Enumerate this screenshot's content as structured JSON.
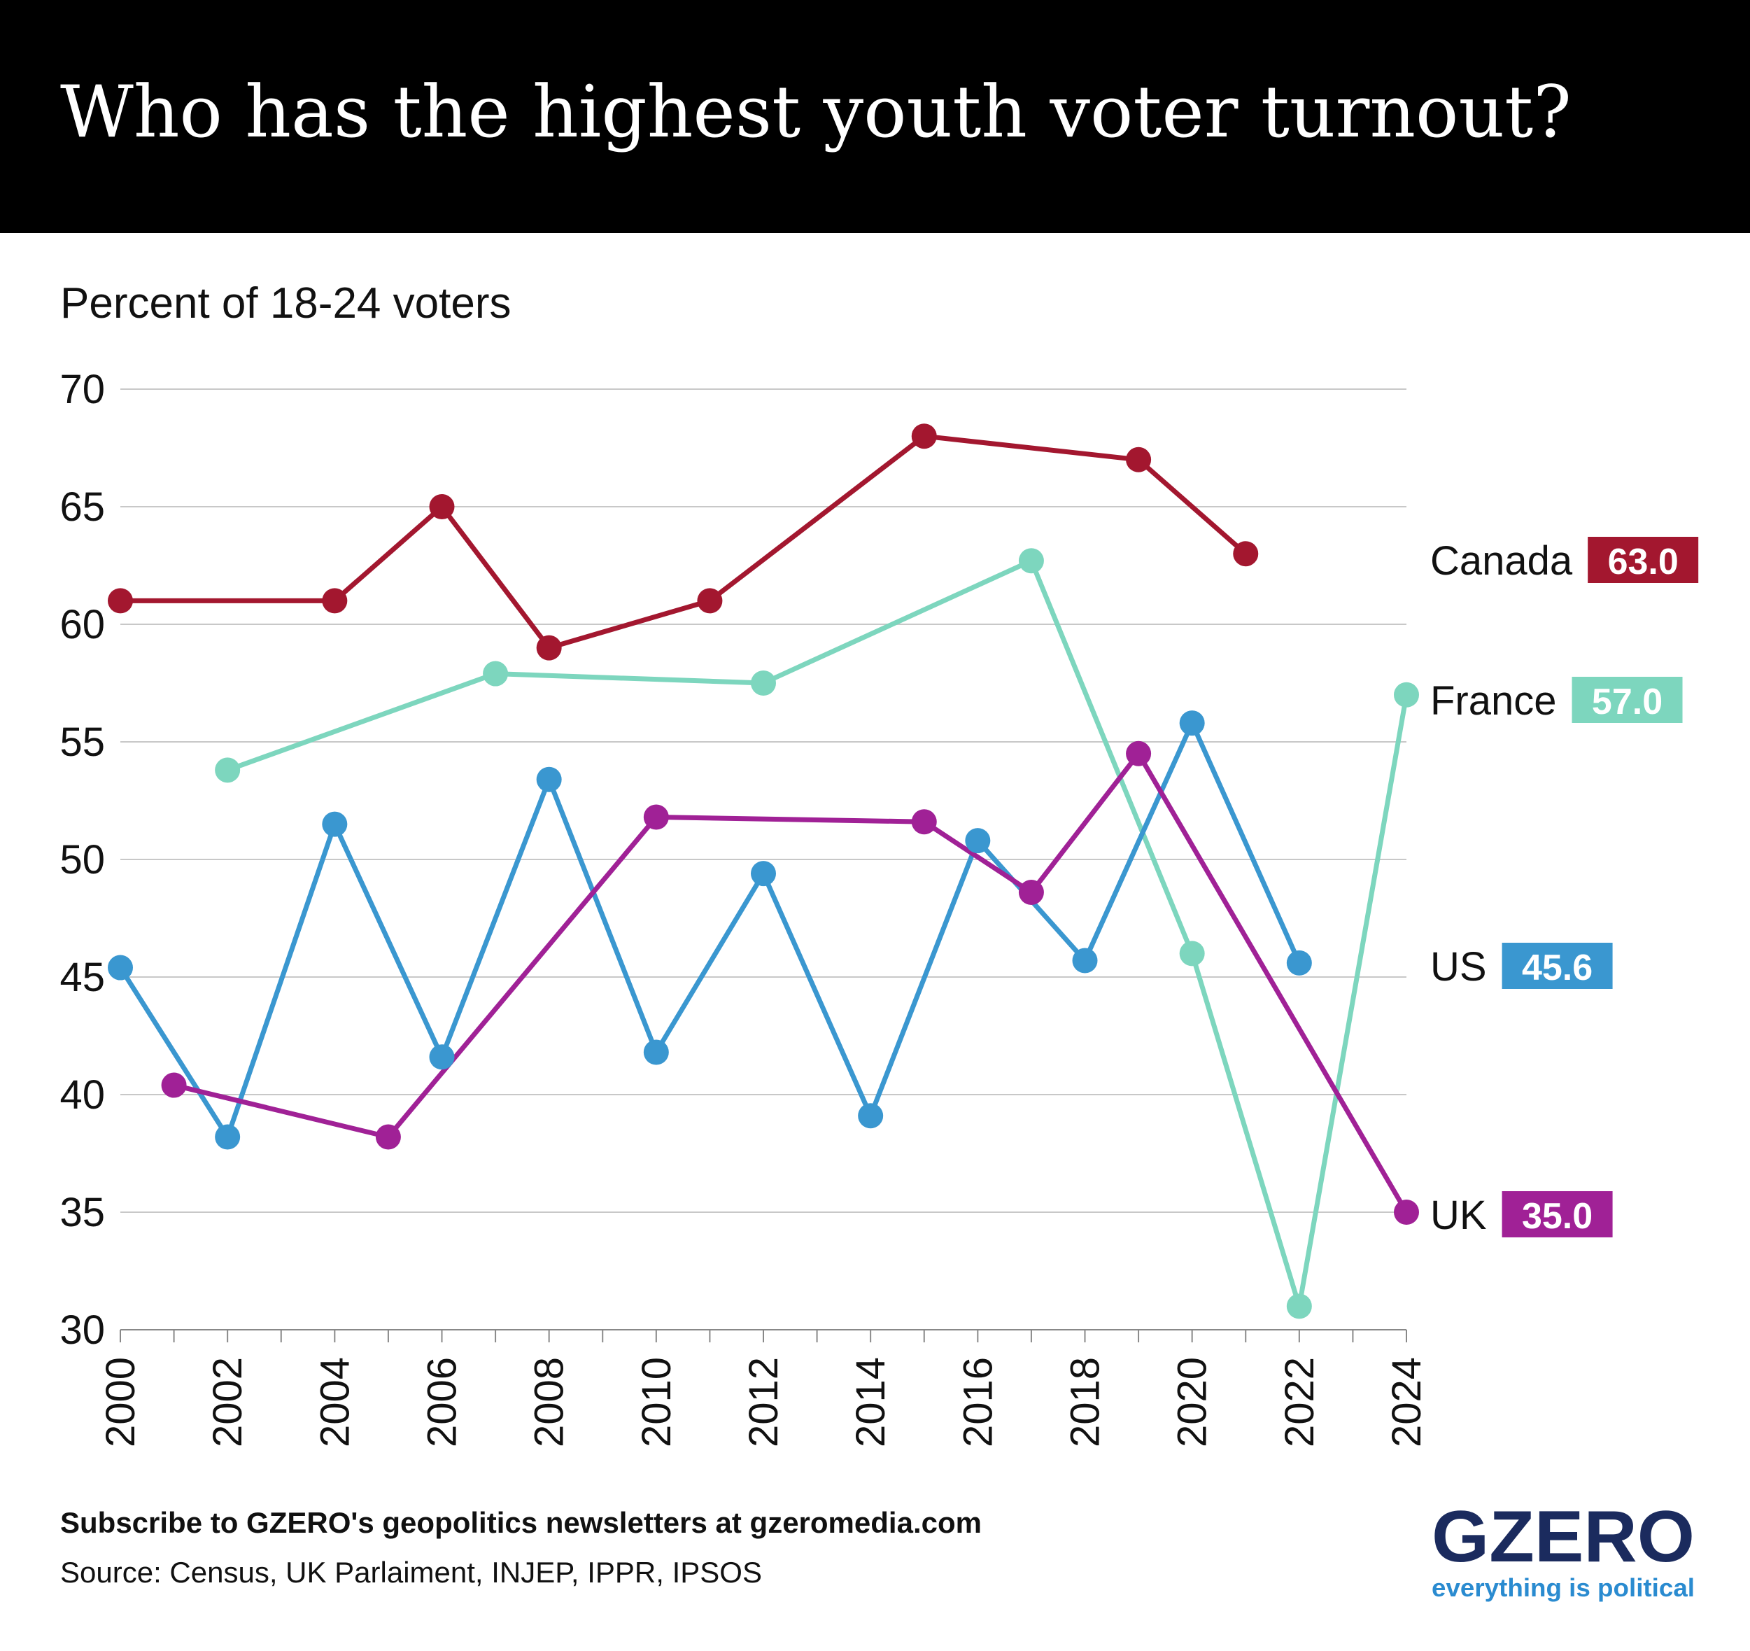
{
  "header": {
    "title": "Who has the highest youth voter turnout?"
  },
  "subtitle": "Percent of 18-24 voters",
  "footer": {
    "subscribe": "Subscribe to GZERO's geopolitics newsletters at gzeromedia.com",
    "source": "Source: Census, UK Parlaiment, INJEP, IPPR, IPSOS"
  },
  "logo": {
    "wordmark": "GZERO",
    "tagline": "everything is political",
    "wordmark_color": "#1b2b5e",
    "tagline_color": "#2a8bd0"
  },
  "chart_data": {
    "type": "line",
    "title": "Who has the highest youth voter turnout?",
    "ylabel": "Percent of 18-24 voters",
    "ylim": [
      30,
      70
    ],
    "yticks": [
      30,
      35,
      40,
      45,
      50,
      55,
      60,
      65,
      70
    ],
    "xlim": [
      2000,
      2024
    ],
    "xticks": [
      2000,
      2002,
      2004,
      2006,
      2008,
      2010,
      2012,
      2014,
      2016,
      2018,
      2020,
      2022,
      2024
    ],
    "grid": "horizontal",
    "legend": "right end labels",
    "series": [
      {
        "name": "Canada",
        "color": "#a3172f",
        "last_value_label": "63.0",
        "points": [
          [
            2000,
            61
          ],
          [
            2004,
            61
          ],
          [
            2006,
            65
          ],
          [
            2008,
            59
          ],
          [
            2011,
            61
          ],
          [
            2015,
            68
          ],
          [
            2019,
            67
          ],
          [
            2021,
            63
          ]
        ]
      },
      {
        "name": "France",
        "color": "#7dd6be",
        "last_value_label": "57.0",
        "points": [
          [
            2002,
            53.8
          ],
          [
            2007,
            57.9
          ],
          [
            2012,
            57.5
          ],
          [
            2017,
            62.7
          ],
          [
            2020,
            46
          ],
          [
            2022,
            31
          ],
          [
            2024,
            57
          ]
        ]
      },
      {
        "name": "US",
        "color": "#3a97d0",
        "last_value_label": "45.6",
        "points": [
          [
            2000,
            45.4
          ],
          [
            2002,
            38.2
          ],
          [
            2004,
            51.5
          ],
          [
            2006,
            41.6
          ],
          [
            2008,
            53.4
          ],
          [
            2010,
            41.8
          ],
          [
            2012,
            49.4
          ],
          [
            2014,
            39.1
          ],
          [
            2016,
            50.8
          ],
          [
            2018,
            45.7
          ],
          [
            2020,
            55.8
          ],
          [
            2022,
            45.6
          ]
        ]
      },
      {
        "name": "UK",
        "color": "#a02196",
        "last_value_label": "35.0",
        "points": [
          [
            2001,
            40.4
          ],
          [
            2005,
            38.2
          ],
          [
            2010,
            51.8
          ],
          [
            2015,
            51.6
          ],
          [
            2017,
            48.6
          ],
          [
            2019,
            54.5
          ],
          [
            2024,
            35
          ]
        ]
      }
    ]
  }
}
